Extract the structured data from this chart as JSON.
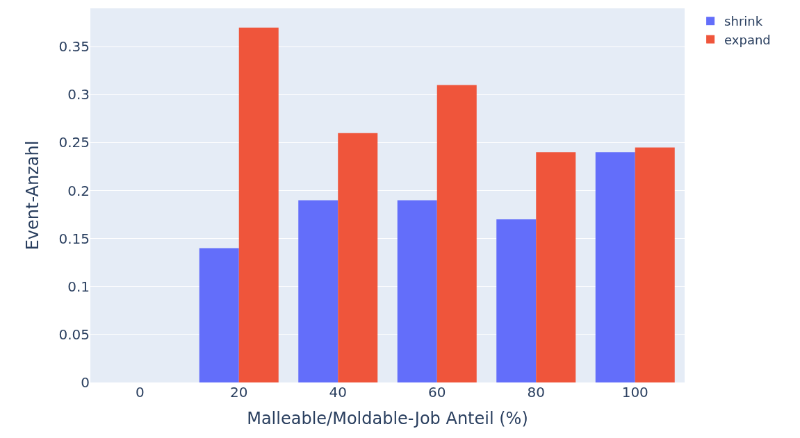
{
  "chart_data": {
    "type": "bar",
    "xlabel": "Malleable/Moldable-Job Anteil (%)",
    "ylabel": "Event-Anzahl",
    "categories": [
      "0",
      "20",
      "40",
      "60",
      "80",
      "100"
    ],
    "series": [
      {
        "name": "shrink",
        "color": "#636efa",
        "values": [
          0,
          0.14,
          0.19,
          0.19,
          0.17,
          0.24
        ]
      },
      {
        "name": "expand",
        "color": "#ef553b",
        "values": [
          0,
          0.37,
          0.26,
          0.31,
          0.24,
          0.245
        ]
      }
    ],
    "ylim": [
      0,
      0.39
    ],
    "yticks": [
      0,
      0.05,
      0.1,
      0.15,
      0.2,
      0.25,
      0.3,
      0.35
    ],
    "grid": "y",
    "legend": "top right"
  }
}
